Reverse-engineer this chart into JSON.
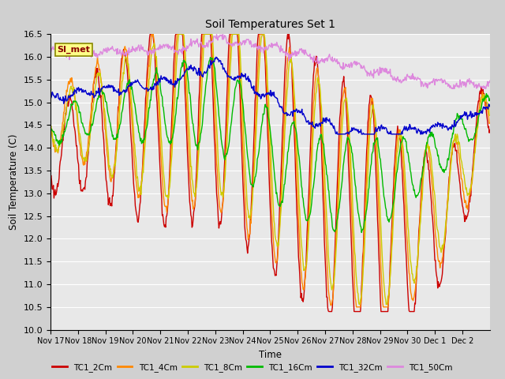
{
  "title": "Soil Temperatures Set 1",
  "xlabel": "Time",
  "ylabel": "Soil Temperature (C)",
  "ylim": [
    10.0,
    16.5
  ],
  "yticks": [
    10.0,
    10.5,
    11.0,
    11.5,
    12.0,
    12.5,
    13.0,
    13.5,
    14.0,
    14.5,
    15.0,
    15.5,
    16.0,
    16.5
  ],
  "xtick_labels": [
    "Nov 17",
    "Nov 18",
    "Nov 19",
    "Nov 20",
    "Nov 21",
    "Nov 22",
    "Nov 23",
    "Nov 24",
    "Nov 25",
    "Nov 26",
    "Nov 27",
    "Nov 28",
    "Nov 29",
    "Nov 30",
    "Dec 1",
    "Dec 2"
  ],
  "colors": {
    "TC1_2Cm": "#cc0000",
    "TC1_4Cm": "#ff8800",
    "TC1_8Cm": "#cccc00",
    "TC1_16Cm": "#00bb00",
    "TC1_32Cm": "#0000cc",
    "TC1_50Cm": "#dd88dd"
  },
  "annotation_text": "SI_met",
  "annotation_color": "#880000",
  "annotation_bg": "#ffff88",
  "annotation_border": "#888800",
  "fig_bg_color": "#d0d0d0",
  "plot_bg_color": "#e8e8e8",
  "grid_color": "#ffffff",
  "line_width": 1.0
}
